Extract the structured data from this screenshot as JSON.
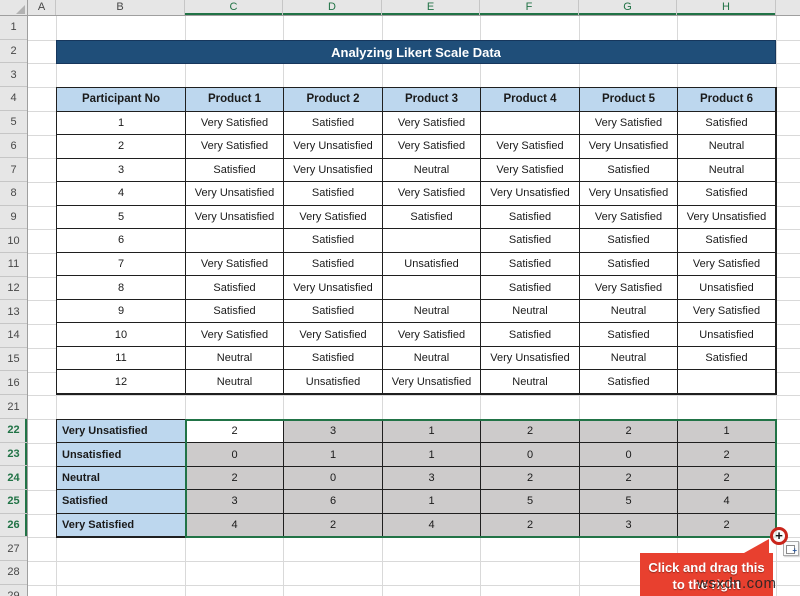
{
  "title": "Analyzing Likert Scale Data",
  "column_headers": [
    "A",
    "B",
    "C",
    "D",
    "E",
    "F",
    "G",
    "H"
  ],
  "row_headers": [
    1,
    2,
    3,
    4,
    5,
    6,
    7,
    8,
    9,
    10,
    11,
    12,
    13,
    14,
    15,
    16,
    21,
    22,
    23,
    24,
    25,
    26,
    27,
    28,
    29
  ],
  "selection": {
    "columns": [
      "C",
      "D",
      "E",
      "F",
      "G",
      "H"
    ],
    "rows": [
      22,
      23,
      24,
      25,
      26
    ],
    "active_cell": "C22"
  },
  "main_table": {
    "headers": [
      "Participant No",
      "Product 1",
      "Product 2",
      "Product 3",
      "Product 4",
      "Product 5",
      "Product 6"
    ],
    "rows": [
      {
        "participant": "1",
        "responses": [
          "Very Satisfied",
          "Satisfied",
          "Very Satisfied",
          "",
          "Very Satisfied",
          "Satisfied"
        ]
      },
      {
        "participant": "2",
        "responses": [
          "Very Satisfied",
          "Very Unsatisfied",
          "Very Satisfied",
          "Very Satisfied",
          "Very Unsatisfied",
          "Neutral"
        ]
      },
      {
        "participant": "3",
        "responses": [
          "Satisfied",
          "Very Unsatisfied",
          "Neutral",
          "Very Satisfied",
          "Satisfied",
          "Neutral"
        ]
      },
      {
        "participant": "4",
        "responses": [
          "Very Unsatisfied",
          "Satisfied",
          "Very Satisfied",
          "Very Unsatisfied",
          "Very Unsatisfied",
          "Satisfied"
        ]
      },
      {
        "participant": "5",
        "responses": [
          "Very Unsatisfied",
          "Very Satisfied",
          "Satisfied",
          "Satisfied",
          "Very Satisfied",
          "Very Unsatisfied"
        ]
      },
      {
        "participant": "6",
        "responses": [
          "",
          "Satisfied",
          "",
          "Satisfied",
          "Satisfied",
          "Satisfied"
        ]
      },
      {
        "participant": "7",
        "responses": [
          "Very Satisfied",
          "Satisfied",
          "Unsatisfied",
          "Satisfied",
          "Satisfied",
          "Very Satisfied"
        ]
      },
      {
        "participant": "8",
        "responses": [
          "Satisfied",
          "Very Unsatisfied",
          "",
          "Satisfied",
          "Very Satisfied",
          "Unsatisfied"
        ]
      },
      {
        "participant": "9",
        "responses": [
          "Satisfied",
          "Satisfied",
          "Neutral",
          "Neutral",
          "Neutral",
          "Very Satisfied"
        ]
      },
      {
        "participant": "10",
        "responses": [
          "Very Satisfied",
          "Very Satisfied",
          "Very Satisfied",
          "Satisfied",
          "Satisfied",
          "Unsatisfied"
        ]
      },
      {
        "participant": "11",
        "responses": [
          "Neutral",
          "Satisfied",
          "Neutral",
          "Very Unsatisfied",
          "Neutral",
          "Satisfied"
        ]
      },
      {
        "participant": "12",
        "responses": [
          "Neutral",
          "Unsatisfied",
          "Very Unsatisfied",
          "Neutral",
          "Satisfied",
          ""
        ]
      }
    ]
  },
  "summary_table": {
    "rows": [
      {
        "label": "Very Unsatisfied",
        "values": [
          "2",
          "3",
          "1",
          "2",
          "2",
          "1"
        ]
      },
      {
        "label": "Unsatisfied",
        "values": [
          "0",
          "1",
          "1",
          "0",
          "0",
          "2"
        ]
      },
      {
        "label": "Neutral",
        "values": [
          "2",
          "0",
          "3",
          "2",
          "2",
          "2"
        ]
      },
      {
        "label": "Satisfied",
        "values": [
          "3",
          "6",
          "1",
          "5",
          "5",
          "4"
        ]
      },
      {
        "label": "Very Satisfied",
        "values": [
          "4",
          "2",
          "4",
          "2",
          "3",
          "2"
        ]
      }
    ]
  },
  "fill_handle": {
    "glyph": "+"
  },
  "callout": {
    "line1": "Click and drag this",
    "line2": "to the right"
  },
  "watermark": "wsxdn.com",
  "colors": {
    "title_bar": "#1F4E79",
    "table_header_fill": "#BDD7EE",
    "selection_green": "#217346",
    "selection_fill_gray": "#CDCBCB",
    "callout_red": "#E8402F",
    "ring_red": "#C9251B"
  }
}
